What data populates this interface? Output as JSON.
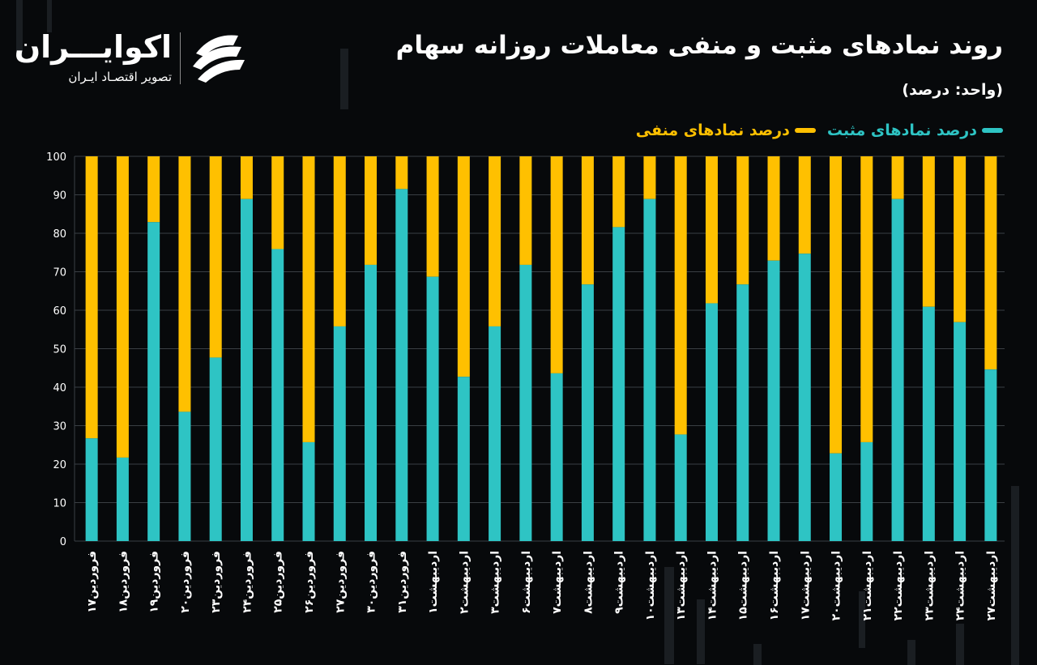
{
  "title": "روند نمادهای مثبت و منفی معاملات روزانه سهام",
  "unit": "(واحد: درصد)",
  "brand": {
    "name": "اکوایـــران",
    "tagline": "تصویر اقتصـاد ایـران"
  },
  "icons": {
    "logo": "ecoiran-logo-icon"
  },
  "colors": {
    "positive": "#2ec4c4",
    "negative": "#ffc000",
    "background": "#07090b",
    "grid": "#3a3f44",
    "text": "#ffffff"
  },
  "chart_data": {
    "type": "bar",
    "stacked": true,
    "legend": "top-right",
    "ylim": [
      0,
      100
    ],
    "yticks": [
      "0",
      "10",
      "20",
      "30",
      "40",
      "50",
      "60",
      "70",
      "80",
      "90",
      "100"
    ],
    "grid": true,
    "categories": [
      "فروردین۱۷",
      "فروردین۱۸",
      "فروردین۱۹",
      "فروردین۲۰",
      "فروردین۲۳",
      "فروردین۲۴",
      "فروردین۲۵",
      "فروردین۲۶",
      "فروردین۲۷",
      "فروردین۳۰",
      "فروردین۳۱",
      "اردیبهشت۱",
      "اردیبهشت۲",
      "اردیبهشت۳",
      "اردیبهشت۶",
      "اردیبهشت۷",
      "اردیبهشت۸",
      "اردیبهشت۹",
      "اردیبهشت۱۰",
      "اردیبهشت۱۳",
      "اردیبهشت۱۴",
      "اردیبهشت۱۵",
      "اردیبهشت۱۶",
      "اردیبهشت۱۷",
      "اردیبهشت۲۰",
      "اردیبهشت۲۱",
      "اردیبهشت۲۲",
      "اردیبهشت۲۳",
      "اردیبهشت۲۴",
      "اردیبهشت۲۷"
    ],
    "series": [
      {
        "name": "درصد نمادهای مثبت",
        "values": [
          26.7,
          21.7,
          82.9,
          33.6,
          47.7,
          88.9,
          75.9,
          25.7,
          55.8,
          71.8,
          91.5,
          68.7,
          42.7,
          55.8,
          71.8,
          43.6,
          66.7,
          81.6,
          88.9,
          27.7,
          61.8,
          66.7,
          72.9,
          74.7,
          22.8,
          25.7,
          88.9,
          60.9,
          56.9,
          44.6
        ]
      },
      {
        "name": "درصد نمادهای منفی",
        "values": [
          73.3,
          78.3,
          17.1,
          66.4,
          52.3,
          11.1,
          24.1,
          74.3,
          44.2,
          28.2,
          8.5,
          31.3,
          57.3,
          44.2,
          28.2,
          56.4,
          33.3,
          18.4,
          11.1,
          72.3,
          38.2,
          33.3,
          27.1,
          25.3,
          77.2,
          74.3,
          11.1,
          39.1,
          43.1,
          55.4
        ]
      }
    ]
  }
}
